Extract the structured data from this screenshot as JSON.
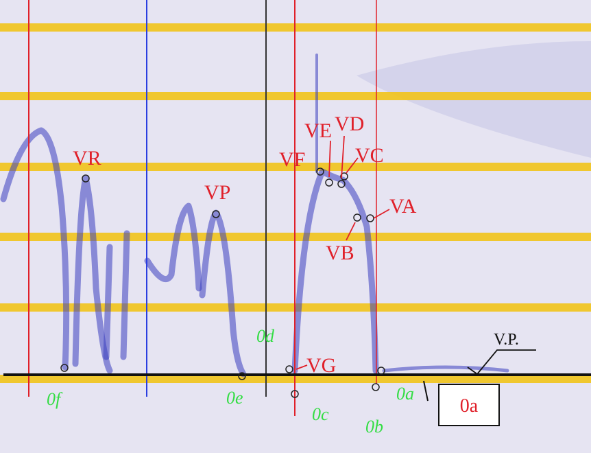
{
  "annotations": {
    "red": [
      "VR",
      "VP",
      "VF",
      "VE",
      "VD",
      "VC",
      "VA",
      "VB",
      "VG",
      "V.P."
    ],
    "green": [
      "0d",
      "0f",
      "0e",
      "0c",
      "0b",
      "0a"
    ]
  },
  "box_label": "0a"
}
